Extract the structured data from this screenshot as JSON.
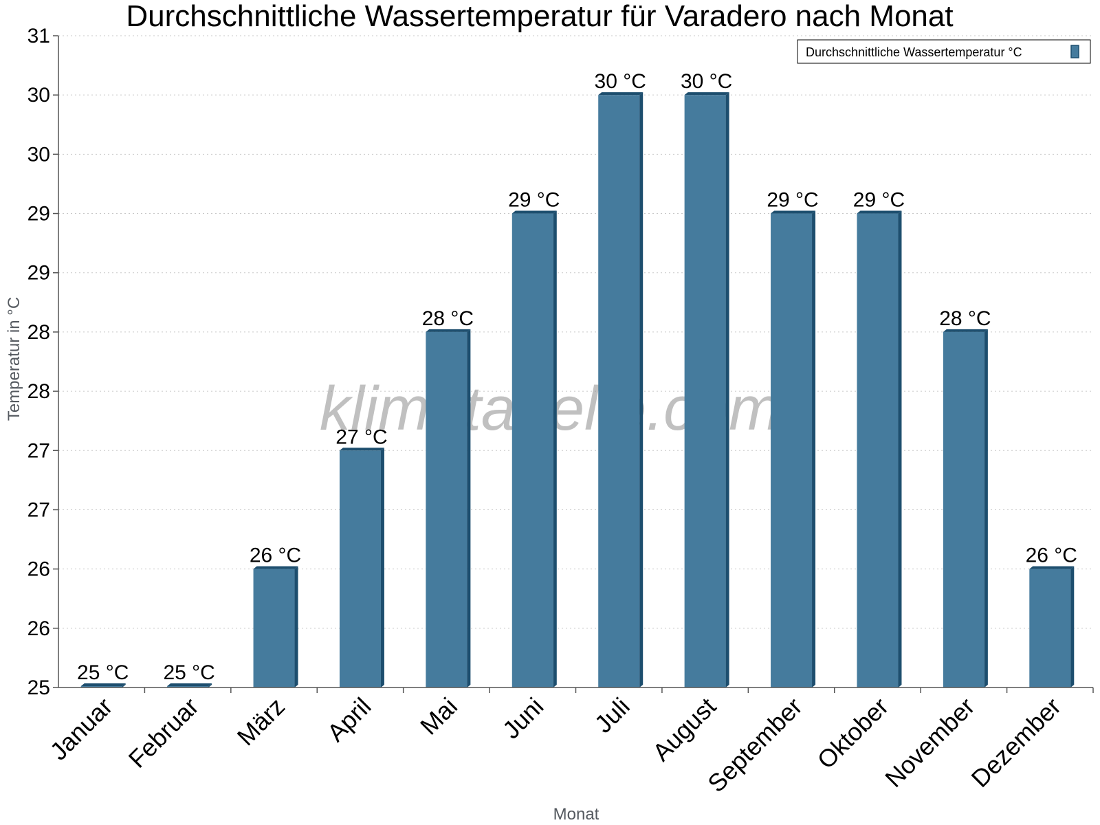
{
  "chart_data": {
    "type": "bar",
    "title": "Durchschnittliche Wassertemperatur für Varadero nach Monat",
    "xlabel": "Monat",
    "ylabel": "Temperatur in °C",
    "categories": [
      "Januar",
      "Februar",
      "März",
      "April",
      "Mai",
      "Juni",
      "Juli",
      "August",
      "September",
      "Oktober",
      "November",
      "Dezember"
    ],
    "series": [
      {
        "name": "Durchschnittliche Wassertemperatur °C",
        "values": [
          25,
          25,
          26,
          27,
          28,
          29,
          30,
          30,
          29,
          29,
          28,
          26
        ],
        "labels": [
          "25 °C",
          "25 °C",
          "26 °C",
          "27 °C",
          "28 °C",
          "29 °C",
          "30 °C",
          "30 °C",
          "29 °C",
          "29 °C",
          "28 °C",
          "26 °C"
        ],
        "color": "#457b9d",
        "edge_color": "#1d4e6e"
      }
    ],
    "ylim": [
      25,
      30.5
    ],
    "yticks": [
      25,
      25.5,
      26,
      26.5,
      27,
      27.5,
      28,
      28.5,
      29,
      29.5,
      30,
      30.5
    ],
    "ytick_labels": [
      "25",
      "26",
      "26",
      "27",
      "27",
      "28",
      "28",
      "29",
      "29",
      "30",
      "30",
      "31"
    ],
    "grid": true,
    "legend_position": "top-right"
  },
  "watermark": "klimatabelle.com"
}
